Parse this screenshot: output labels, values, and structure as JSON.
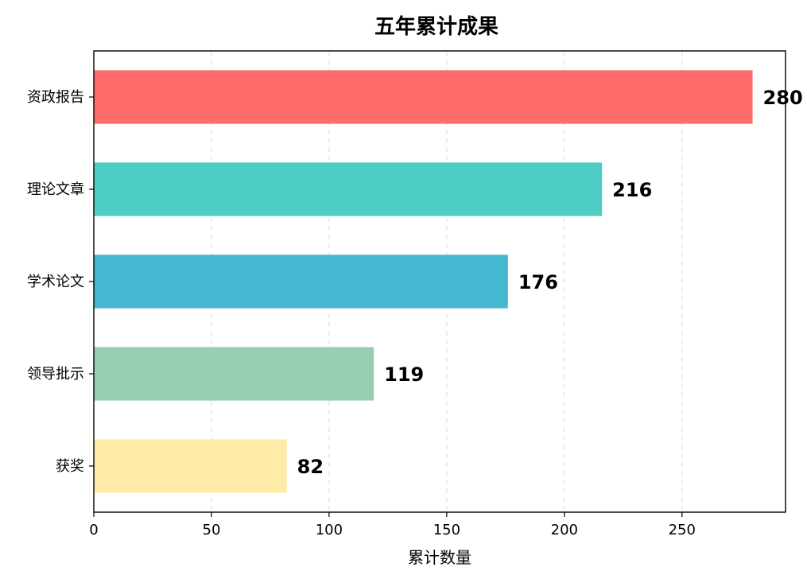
{
  "chart_data": {
    "type": "bar",
    "orientation": "horizontal",
    "title": "五年累计成果",
    "xlabel": "累计数量",
    "ylabel": "",
    "categories": [
      "资政报告",
      "理论文章",
      "学术论文",
      "领导批示",
      "获奖"
    ],
    "values": [
      280,
      216,
      176,
      119,
      82
    ],
    "colors": [
      "#FF6B6B",
      "#4ECDC4",
      "#45B7D1",
      "#96CEB4",
      "#FFEAA7"
    ],
    "xlim": [
      0,
      294
    ],
    "xticks": [
      0,
      50,
      100,
      150,
      200,
      250
    ],
    "grid": true,
    "data_labels": true
  }
}
